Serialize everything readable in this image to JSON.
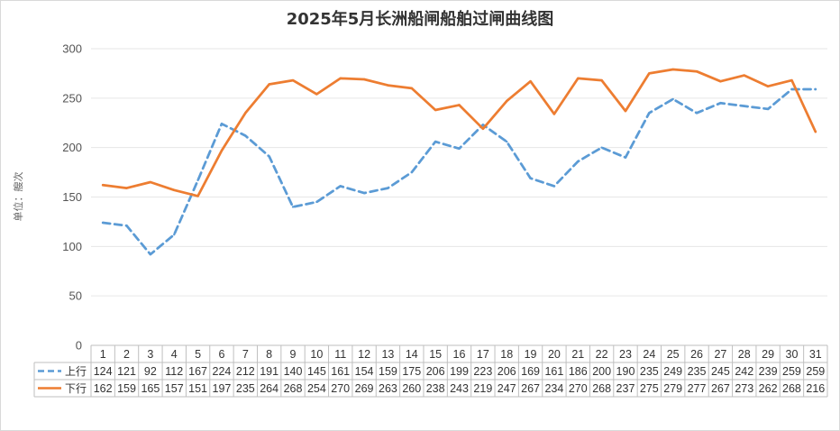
{
  "chart_data": {
    "type": "line",
    "title": "2025年5月长洲船闸船舶过闸曲线图",
    "ylabel": "单位：艘次",
    "xlabel": "",
    "ylim": [
      0,
      300
    ],
    "yticks": [
      0,
      50,
      100,
      150,
      200,
      250,
      300
    ],
    "grid": true,
    "legend": "data-table-left",
    "categories": [
      "1",
      "2",
      "3",
      "4",
      "5",
      "6",
      "7",
      "8",
      "9",
      "10",
      "11",
      "12",
      "13",
      "14",
      "15",
      "16",
      "17",
      "18",
      "19",
      "20",
      "21",
      "22",
      "23",
      "24",
      "25",
      "26",
      "27",
      "28",
      "29",
      "30",
      "31"
    ],
    "series": [
      {
        "name": "上行",
        "color": "#5B9BD5",
        "style": "dashed",
        "values": [
          124,
          121,
          92,
          112,
          167,
          224,
          212,
          191,
          140,
          145,
          161,
          154,
          159,
          175,
          206,
          199,
          223,
          206,
          169,
          161,
          186,
          200,
          190,
          235,
          249,
          235,
          245,
          242,
          239,
          259,
          259
        ]
      },
      {
        "name": "下行",
        "color": "#ED7D31",
        "style": "solid",
        "values": [
          162,
          159,
          165,
          157,
          151,
          197,
          235,
          264,
          268,
          254,
          270,
          269,
          263,
          260,
          238,
          243,
          219,
          247,
          267,
          234,
          270,
          268,
          237,
          275,
          279,
          277,
          267,
          273,
          262,
          268,
          216
        ]
      }
    ]
  }
}
